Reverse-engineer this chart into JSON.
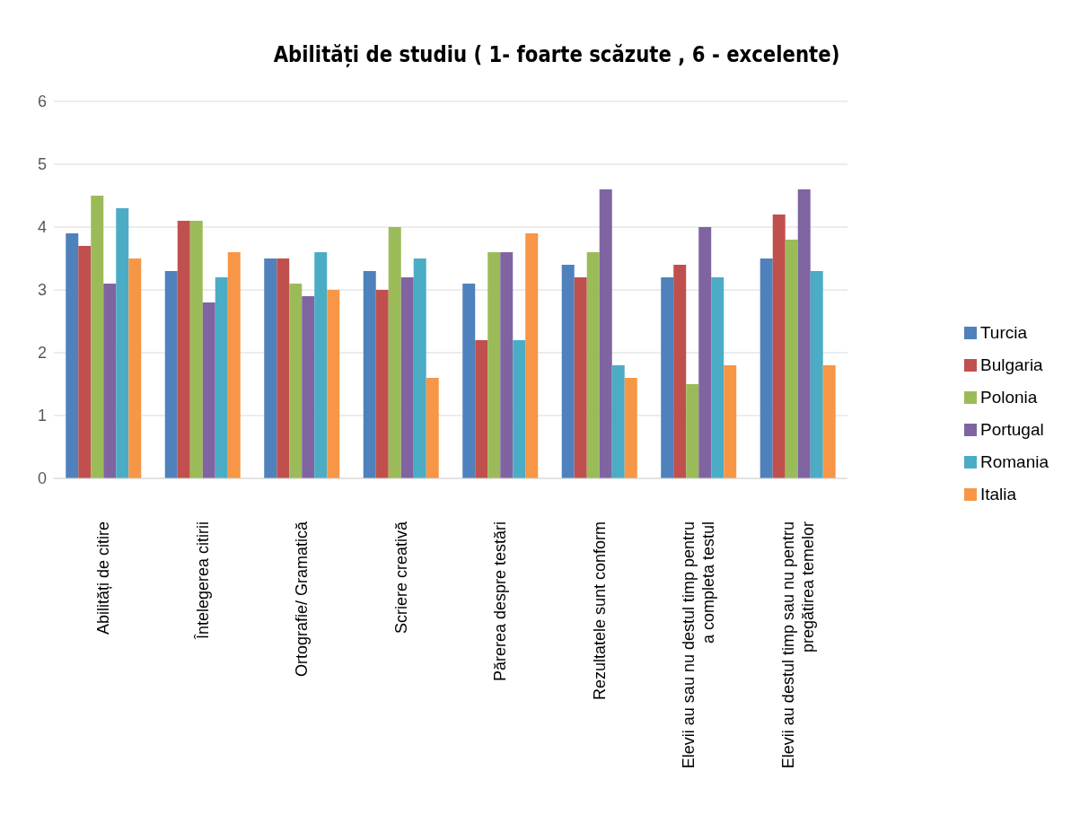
{
  "chart_data": {
    "type": "bar",
    "title": "Abilități de studiu ( 1- foarte scăzute , 6 - excelente)",
    "categories": [
      "Abilități de citire",
      "Întelegerea citirii",
      "Ortografie/ Gramatică",
      "Scriere creativă",
      "Părerea despre testări",
      "Rezultatele sunt conform",
      "Elevii au sau nu destul timp pentru a completa testul",
      "Elevii au destul timp sau nu pentru pregătirea temelor"
    ],
    "series": [
      {
        "name": "Turcia",
        "color": "#4f81bd",
        "values": [
          3.9,
          3.3,
          3.5,
          3.3,
          3.1,
          3.4,
          3.2,
          3.5
        ]
      },
      {
        "name": "Bulgaria",
        "color": "#c0504d",
        "values": [
          3.7,
          4.1,
          3.5,
          3.0,
          2.2,
          3.2,
          3.4,
          4.2
        ]
      },
      {
        "name": "Polonia",
        "color": "#9bbb59",
        "values": [
          4.5,
          4.1,
          3.1,
          4.0,
          3.6,
          3.6,
          1.5,
          3.8
        ]
      },
      {
        "name": "Portugal",
        "color": "#8064a2",
        "values": [
          3.1,
          2.8,
          2.9,
          3.2,
          3.6,
          4.6,
          4.0,
          4.6
        ]
      },
      {
        "name": "Romania",
        "color": "#4bacc6",
        "values": [
          4.3,
          3.2,
          3.6,
          3.5,
          2.2,
          1.8,
          3.2,
          3.3
        ]
      },
      {
        "name": "Italia",
        "color": "#f79646",
        "values": [
          3.5,
          3.6,
          3.0,
          1.6,
          3.9,
          1.6,
          1.8,
          1.8
        ]
      }
    ],
    "ylim": [
      0,
      6
    ],
    "yticks": [
      0,
      1,
      2,
      3,
      4,
      5,
      6
    ],
    "grid": "y",
    "legend": "right"
  }
}
